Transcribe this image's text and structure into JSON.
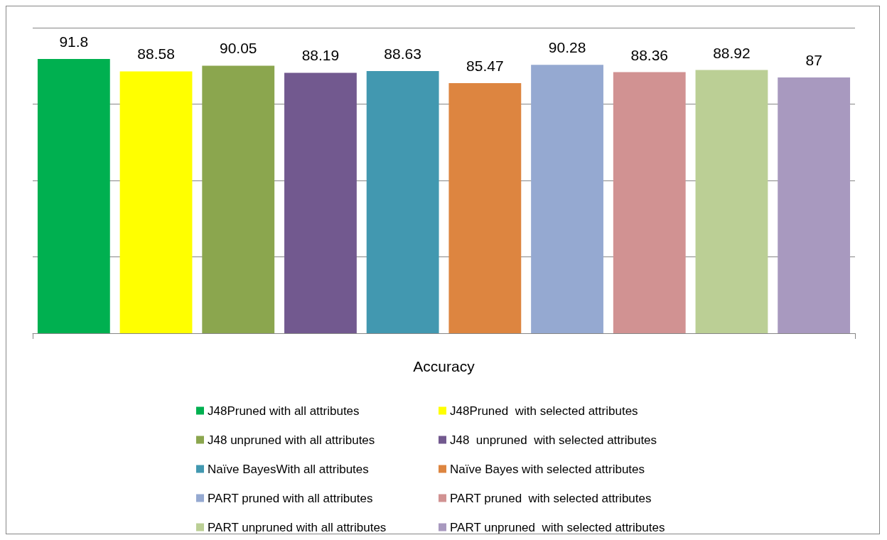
{
  "chart_data": {
    "type": "bar",
    "xlabel": "Accuracy",
    "categories": [
      null,
      null,
      null,
      null,
      null,
      null,
      null,
      null,
      null,
      null
    ],
    "stacked": true,
    "series": [
      {
        "name": "J48Pruned with all attributes",
        "color": "#00b050",
        "values": [
          91.8,
          null,
          null,
          null,
          null,
          null,
          null,
          null,
          null,
          null
        ]
      },
      {
        "name": "J48Pruned  with selected attributes",
        "color": "#ffff00",
        "values": [
          null,
          88.58,
          null,
          null,
          null,
          null,
          null,
          null,
          null,
          null
        ]
      },
      {
        "name": "J48 unpruned with all attributes",
        "color": "#8ba64e",
        "values": [
          null,
          null,
          90.05,
          null,
          null,
          null,
          null,
          null,
          null,
          null
        ]
      },
      {
        "name": "J48  unpruned  with selected attributes",
        "color": "#72598f",
        "values": [
          null,
          null,
          null,
          88.19,
          null,
          null,
          null,
          null,
          null,
          null
        ]
      },
      {
        "name": "Naïve BayesWith all attributes",
        "color": "#4298b0",
        "values": [
          null,
          null,
          null,
          null,
          88.63,
          null,
          null,
          null,
          null,
          null
        ]
      },
      {
        "name": "Naïve Bayes with selected attributes",
        "color": "#dd8540",
        "values": [
          null,
          null,
          null,
          null,
          null,
          85.47,
          null,
          null,
          null,
          null
        ]
      },
      {
        "name": "PART pruned with all attributes",
        "color": "#95a9d1",
        "values": [
          null,
          null,
          null,
          null,
          null,
          null,
          90.28,
          null,
          null,
          null
        ]
      },
      {
        "name": "PART pruned  with selected attributes",
        "color": "#d19292",
        "values": [
          null,
          null,
          null,
          null,
          null,
          null,
          null,
          88.36,
          null,
          null
        ]
      },
      {
        "name": "PART unpruned with all attributes",
        "color": "#bbcf95",
        "values": [
          null,
          null,
          null,
          null,
          null,
          null,
          null,
          null,
          88.92,
          null
        ]
      },
      {
        "name": "PART unpruned  with selected attributes",
        "color": "#a899bf",
        "values": [
          null,
          null,
          null,
          null,
          null,
          null,
          null,
          null,
          null,
          87
        ]
      }
    ],
    "ylim": [
      20,
      100
    ],
    "yticks": [
      {
        "value": 20,
        "label": null
      },
      {
        "value": 40,
        "label": null
      },
      {
        "value": 60,
        "label": null
      },
      {
        "value": 80,
        "label": null
      },
      {
        "value": 100,
        "label": null
      }
    ],
    "grid": "y",
    "legend": "bottom",
    "data_labels": true
  }
}
